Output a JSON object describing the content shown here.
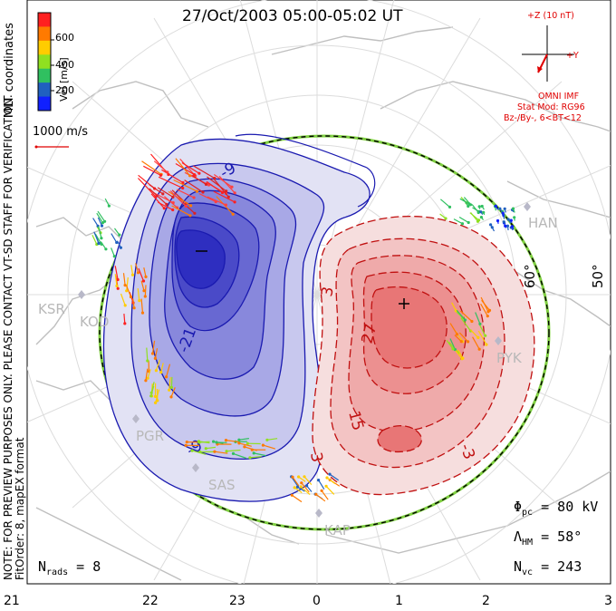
{
  "title": "27/Oct/2003 05:00-05:02 UT",
  "colorbar": {
    "unit_label": "Vel [m/s]",
    "ticks": [
      "600",
      "400",
      "200"
    ],
    "colors": [
      "#ff2020",
      "#ff7a00",
      "#ffcc00",
      "#90e020",
      "#30c060",
      "#2060c0",
      "#1020ff"
    ]
  },
  "side_labels": {
    "coordinates": "MLT coordinates",
    "note": "NOTE: FOR PREVIEW PURPOSES ONLY. PLEASE CONTACT VT-SD STAFF FOR VERIFICATION.",
    "fitorder": "FitOrder: 8, mapEX format"
  },
  "reference_vector": "1000 m/s",
  "imf": {
    "z_label": "+Z (10 nT)",
    "y_label": "+Y",
    "source": "OMNI IMF",
    "model": "Stat Mod: RG96",
    "condition": "Bz-/By-, 6<BT<12"
  },
  "stats": {
    "phi_pc": "80 kV",
    "lambda_hm": "58°",
    "n_vc": "243",
    "n_rads": "8"
  },
  "mlt_axis": [
    "21",
    "22",
    "23",
    "0",
    "1",
    "2",
    "3"
  ],
  "latitude_labels": [
    "60°",
    "50°"
  ],
  "stations": [
    "KSR",
    "KOD",
    "PGR",
    "SAS",
    "KAP",
    "PYK",
    "HAN"
  ],
  "contour_labels": [
    "-9",
    "-21",
    "-9",
    "3",
    "27",
    "15",
    "3",
    "-3"
  ],
  "potential_colors": {
    "negative": "#4040e0",
    "positive": "#e02020",
    "hmb": "#7fd040"
  }
}
